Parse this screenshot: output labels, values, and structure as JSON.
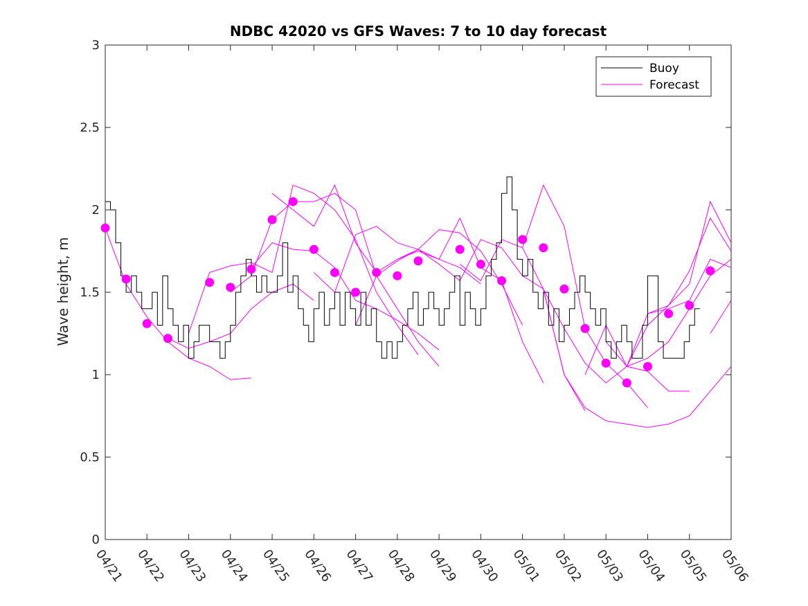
{
  "chart_data": {
    "type": "line",
    "title": "NDBC 42020 vs GFS Waves: 7 to 10 day forecast",
    "xlabel": "",
    "ylabel": "Wave height, m",
    "xlim": [
      "04/21",
      "05/06"
    ],
    "ylim": [
      0,
      3
    ],
    "yticks": [
      "0",
      "0.5",
      "1",
      "1.5",
      "2",
      "2.5",
      "3"
    ],
    "xticks": [
      "04/21",
      "04/22",
      "04/23",
      "04/24",
      "04/25",
      "04/26",
      "04/27",
      "04/28",
      "04/29",
      "04/30",
      "05/01",
      "05/02",
      "05/03",
      "05/04",
      "05/05",
      "05/06"
    ],
    "grid": false,
    "legend": {
      "placement": "top-right",
      "entries": [
        "Buoy",
        "Forecast"
      ]
    },
    "colors": {
      "buoy": "#000000",
      "forecast": "#ff00ff"
    },
    "series": [
      {
        "name": "Buoy",
        "x": [
          "04/21 00:00",
          "04/21 03:00",
          "04/21 06:00",
          "04/21 09:00",
          "04/21 12:00",
          "04/21 15:00",
          "04/21 18:00",
          "04/21 21:00",
          "04/22 00:00",
          "04/22 03:00",
          "04/22 06:00",
          "04/22 09:00",
          "04/22 12:00",
          "04/22 15:00",
          "04/22 18:00",
          "04/22 21:00",
          "04/23 00:00",
          "04/23 03:00",
          "04/23 06:00",
          "04/23 09:00",
          "04/23 12:00",
          "04/23 15:00",
          "04/23 18:00",
          "04/23 21:00",
          "04/24 00:00",
          "04/24 03:00",
          "04/24 06:00",
          "04/24 09:00",
          "04/24 12:00",
          "04/24 15:00",
          "04/24 18:00",
          "04/24 21:00",
          "04/25 00:00",
          "04/25 03:00",
          "04/25 06:00",
          "04/25 09:00",
          "04/25 12:00",
          "04/25 15:00",
          "04/25 18:00",
          "04/25 21:00",
          "04/26 00:00",
          "04/26 03:00",
          "04/26 06:00",
          "04/26 09:00",
          "04/26 12:00",
          "04/26 15:00",
          "04/26 18:00",
          "04/26 21:00",
          "04/27 00:00",
          "04/27 03:00",
          "04/27 06:00",
          "04/27 09:00",
          "04/27 12:00",
          "04/27 15:00",
          "04/27 18:00",
          "04/27 21:00",
          "04/28 00:00",
          "04/28 03:00",
          "04/28 06:00",
          "04/28 09:00",
          "04/28 12:00",
          "04/28 15:00",
          "04/28 18:00",
          "04/28 21:00",
          "04/29 00:00",
          "04/29 03:00",
          "04/29 06:00",
          "04/29 09:00",
          "04/29 12:00",
          "04/29 15:00",
          "04/29 18:00",
          "04/29 21:00",
          "04/30 00:00",
          "04/30 03:00",
          "04/30 06:00",
          "04/30 09:00",
          "04/30 12:00",
          "04/30 15:00",
          "04/30 18:00",
          "04/30 21:00",
          "05/01 00:00",
          "05/01 03:00",
          "05/01 06:00",
          "05/01 09:00",
          "05/01 12:00",
          "05/01 15:00",
          "05/01 18:00",
          "05/01 21:00",
          "05/02 00:00",
          "05/02 03:00",
          "05/02 06:00",
          "05/02 09:00",
          "05/02 12:00",
          "05/02 15:00",
          "05/02 18:00",
          "05/02 21:00",
          "05/03 00:00",
          "05/03 03:00",
          "05/03 06:00",
          "05/03 09:00",
          "05/03 12:00",
          "05/03 15:00",
          "05/03 18:00",
          "05/03 21:00",
          "05/04 00:00",
          "05/04 03:00",
          "05/04 06:00",
          "05/04 09:00",
          "05/04 12:00",
          "05/04 15:00",
          "05/04 18:00",
          "05/04 21:00",
          "05/05 00:00",
          "05/05 03:00",
          "05/05 06:00"
        ],
        "values": [
          2.05,
          2.0,
          1.8,
          1.6,
          1.5,
          1.6,
          1.5,
          1.4,
          1.4,
          1.5,
          1.3,
          1.6,
          1.4,
          1.3,
          1.2,
          1.3,
          1.1,
          1.2,
          1.3,
          1.3,
          1.2,
          1.2,
          1.1,
          1.2,
          1.3,
          1.5,
          1.6,
          1.7,
          1.6,
          1.5,
          1.6,
          1.5,
          1.5,
          1.6,
          1.8,
          1.5,
          1.6,
          1.4,
          1.3,
          1.2,
          1.4,
          1.5,
          1.3,
          1.4,
          1.5,
          1.3,
          1.5,
          1.4,
          1.3,
          1.5,
          1.3,
          1.4,
          1.2,
          1.1,
          1.2,
          1.1,
          1.2,
          1.3,
          1.4,
          1.5,
          1.3,
          1.4,
          1.5,
          1.4,
          1.3,
          1.4,
          1.5,
          1.6,
          1.3,
          1.5,
          1.4,
          1.3,
          1.4,
          1.6,
          1.7,
          1.8,
          2.1,
          2.2,
          2.0,
          1.7,
          1.6,
          1.7,
          1.5,
          1.4,
          1.5,
          1.3,
          1.4,
          1.2,
          1.3,
          1.4,
          1.5,
          1.6,
          1.5,
          1.4,
          1.3,
          1.4,
          1.2,
          1.1,
          1.2,
          1.3,
          1.2,
          1.1,
          1.1,
          1.3,
          1.6,
          1.6,
          1.2,
          1.1,
          1.1,
          1.1,
          1.1,
          1.2,
          1.3,
          1.4,
          1.4
        ]
      },
      {
        "name": "Forecast",
        "markers": {
          "x": [
            "04/21 00:00",
            "04/21 12:00",
            "04/22 00:00",
            "04/22 12:00",
            "04/23 12:00",
            "04/24 00:00",
            "04/24 12:00",
            "04/25 00:00",
            "04/25 12:00",
            "04/26 00:00",
            "04/26 12:00",
            "04/27 00:00",
            "04/27 12:00",
            "04/28 00:00",
            "04/28 12:00",
            "04/29 12:00",
            "04/30 00:00",
            "04/30 12:00",
            "05/01 00:00",
            "05/01 12:00",
            "05/02 00:00",
            "05/02 12:00",
            "05/03 00:00",
            "05/03 12:00",
            "05/04 00:00",
            "05/04 12:00",
            "05/05 00:00",
            "05/05 12:00"
          ],
          "values": [
            1.89,
            1.58,
            1.31,
            1.22,
            1.56,
            1.53,
            1.64,
            1.94,
            2.05,
            1.76,
            1.62,
            1.5,
            1.62,
            1.6,
            1.69,
            1.76,
            1.67,
            1.57,
            1.82,
            1.77,
            1.52,
            1.28,
            1.07,
            0.95,
            1.05,
            1.37,
            1.42,
            1.63
          ]
        },
        "tracks": [
          {
            "x": [
              "04/21 00:00",
              "04/21 12:00",
              "04/22 00:00",
              "04/22 12:00",
              "04/23 00:00",
              "04/23 12:00",
              "04/24 00:00",
              "04/24 12:00"
            ],
            "values": [
              1.89,
              1.55,
              1.35,
              1.2,
              1.1,
              1.05,
              0.97,
              0.98
            ]
          },
          {
            "x": [
              "04/22 12:00",
              "04/23 00:00",
              "04/23 12:00",
              "04/24 00:00",
              "04/24 12:00",
              "04/25 00:00",
              "04/25 12:00",
              "04/26 00:00"
            ],
            "values": [
              1.22,
              1.16,
              1.2,
              1.25,
              1.4,
              1.5,
              1.55,
              1.45
            ]
          },
          {
            "x": [
              "04/23 00:00",
              "04/23 12:00",
              "04/24 00:00",
              "04/24 12:00",
              "04/25 00:00",
              "04/25 12:00",
              "04/26 00:00",
              "04/26 12:00",
              "04/27 00:00",
              "04/27 12:00",
              "04/28 00:00",
              "04/28 12:00"
            ],
            "values": [
              1.25,
              1.62,
              1.66,
              1.68,
              1.62,
              2.15,
              2.1,
              2.0,
              1.82,
              1.5,
              1.3,
              1.12
            ]
          },
          {
            "x": [
              "04/24 00:00",
              "04/24 12:00",
              "04/25 00:00",
              "04/25 12:00",
              "04/26 00:00",
              "04/26 12:00",
              "04/27 00:00",
              "04/27 12:00",
              "04/28 00:00",
              "04/28 12:00",
              "04/29 00:00"
            ],
            "values": [
              1.5,
              1.6,
              1.94,
              2.05,
              2.05,
              2.1,
              2.0,
              1.6,
              1.4,
              1.2,
              1.05
            ]
          },
          {
            "x": [
              "04/24 12:00",
              "04/25 00:00",
              "04/25 12:00",
              "04/26 00:00",
              "04/26 12:00",
              "04/27 00:00",
              "04/27 12:00",
              "04/28 00:00",
              "04/28 12:00",
              "04/29 00:00"
            ],
            "values": [
              1.65,
              1.8,
              1.76,
              1.75,
              1.65,
              1.45,
              1.4,
              1.33,
              1.25,
              1.15
            ]
          },
          {
            "x": [
              "04/25 00:00",
              "04/25 12:00",
              "04/26 00:00",
              "04/26 12:00",
              "04/27 00:00",
              "04/27 12:00",
              "04/28 00:00",
              "04/28 12:00",
              "04/29 00:00",
              "04/29 12:00",
              "04/30 00:00"
            ],
            "values": [
              2.1,
              2.0,
              1.9,
              2.15,
              1.8,
              1.62,
              1.7,
              1.75,
              1.7,
              1.65,
              1.55
            ]
          },
          {
            "x": [
              "04/26 00:00",
              "04/26 12:00",
              "04/27 00:00",
              "04/27 12:00",
              "04/28 00:00",
              "04/28 12:00",
              "04/29 00:00",
              "04/29 12:00",
              "04/30 00:00",
              "04/30 12:00",
              "05/01 00:00"
            ],
            "values": [
              1.62,
              1.5,
              1.85,
              1.9,
              1.8,
              1.76,
              1.88,
              1.86,
              1.75,
              1.55,
              1.3
            ]
          },
          {
            "x": [
              "04/27 00:00",
              "04/27 12:00",
              "04/28 00:00",
              "04/28 12:00",
              "04/29 00:00",
              "04/29 12:00",
              "04/30 00:00",
              "04/30 12:00",
              "05/01 00:00",
              "05/01 12:00"
            ],
            "values": [
              1.3,
              1.6,
              1.69,
              1.76,
              1.7,
              1.95,
              1.65,
              1.57,
              1.2,
              0.95
            ]
          },
          {
            "x": [
              "04/28 00:00",
              "04/28 12:00",
              "04/29 00:00",
              "04/29 12:00",
              "04/30 00:00",
              "04/30 12:00",
              "05/01 00:00",
              "05/01 12:00",
              "05/02 00:00",
              "05/02 12:00"
            ],
            "values": [
              1.7,
              1.76,
              1.67,
              1.57,
              1.82,
              1.77,
              1.6,
              1.52,
              1.0,
              0.78
            ]
          },
          {
            "x": [
              "04/29 12:00",
              "04/30 00:00",
              "04/30 12:00",
              "05/01 00:00",
              "05/01 12:00",
              "05/02 00:00",
              "05/02 12:00",
              "05/03 00:00",
              "05/03 12:00",
              "05/04 00:00"
            ],
            "values": [
              1.67,
              1.57,
              1.82,
              1.77,
              2.15,
              1.9,
              1.28,
              1.07,
              0.95,
              0.8
            ]
          },
          {
            "x": [
              "05/01 00:00",
              "05/01 12:00",
              "05/02 00:00",
              "05/02 12:00",
              "05/03 00:00",
              "05/03 12:00",
              "05/04 00:00",
              "05/04 12:00",
              "05/05 00:00"
            ],
            "values": [
              1.77,
              1.52,
              1.28,
              1.07,
              0.95,
              1.05,
              1.02,
              0.9,
              0.9
            ]
          },
          {
            "x": [
              "05/01 12:00",
              "05/02 00:00",
              "05/02 12:00",
              "05/03 00:00",
              "05/03 12:00",
              "05/04 00:00",
              "05/04 12:00",
              "05/05 00:00",
              "05/05 12:00",
              "05/06 00:00"
            ],
            "values": [
              1.52,
              1.0,
              0.8,
              0.72,
              0.7,
              0.68,
              0.7,
              0.75,
              0.9,
              1.05
            ]
          },
          {
            "x": [
              "05/02 12:00",
              "05/03 00:00",
              "05/03 12:00",
              "05/04 00:00",
              "05/04 12:00",
              "05/05 00:00",
              "05/05 12:00",
              "05/06 00:00"
            ],
            "values": [
              1.0,
              1.3,
              1.05,
              1.1,
              1.2,
              1.4,
              1.6,
              1.7
            ]
          },
          {
            "x": [
              "05/03 00:00",
              "05/03 12:00",
              "05/04 00:00",
              "05/04 12:00",
              "05/05 00:00",
              "05/05 12:00",
              "05/06 00:00"
            ],
            "values": [
              1.2,
              1.05,
              1.37,
              1.42,
              1.55,
              2.05,
              1.8
            ]
          },
          {
            "x": [
              "05/03 12:00",
              "05/04 00:00",
              "05/04 12:00",
              "05/05 00:00",
              "05/05 12:00",
              "05/06 00:00"
            ],
            "values": [
              1.05,
              1.3,
              1.42,
              1.63,
              1.95,
              1.75
            ]
          },
          {
            "x": [
              "05/04 00:00",
              "05/04 12:00",
              "05/05 00:00",
              "05/05 12:00",
              "05/06 00:00"
            ],
            "values": [
              1.37,
              1.4,
              1.45,
              1.7,
              1.65
            ]
          },
          {
            "x": [
              "05/05 12:00",
              "05/06 00:00"
            ],
            "values": [
              1.25,
              1.45
            ]
          }
        ]
      }
    ]
  }
}
